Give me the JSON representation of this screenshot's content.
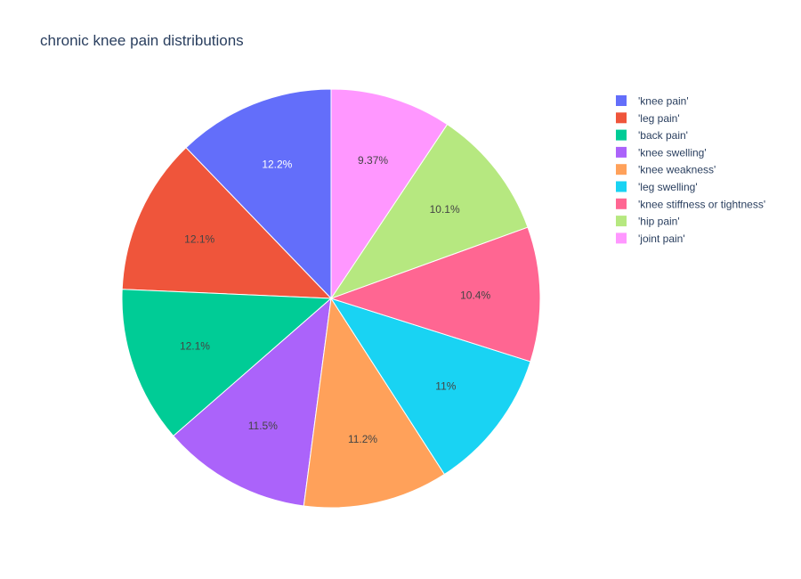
{
  "chart_data": {
    "type": "pie",
    "title": "chronic knee pain distributions",
    "labels": [
      "'knee pain'",
      "'leg pain'",
      "'back pain'",
      "'knee swelling'",
      "'knee weakness'",
      "'leg swelling'",
      "'knee stiffness or tightness'",
      "'hip pain'",
      "'joint pain'"
    ],
    "values": [
      12.2,
      12.1,
      12.1,
      11.5,
      11.2,
      11.0,
      10.4,
      10.1,
      9.37
    ],
    "text_labels": [
      "12.2%",
      "12.1%",
      "12.1%",
      "11.5%",
      "11.2%",
      "11%",
      "10.4%",
      "10.1%",
      "9.37%"
    ],
    "colors": [
      "#636efa",
      "#ef553b",
      "#00cc96",
      "#ab63fa",
      "#ffa15a",
      "#19d3f3",
      "#ff6692",
      "#b6e880",
      "#ff97ff"
    ],
    "label_colors": [
      "#ffffff",
      "#444444",
      "#444444",
      "#444444",
      "#444444",
      "#444444",
      "#444444",
      "#444444",
      "#444444"
    ],
    "direction": "counterclockwise",
    "start_angle": "top",
    "legend_position": "top-right"
  }
}
